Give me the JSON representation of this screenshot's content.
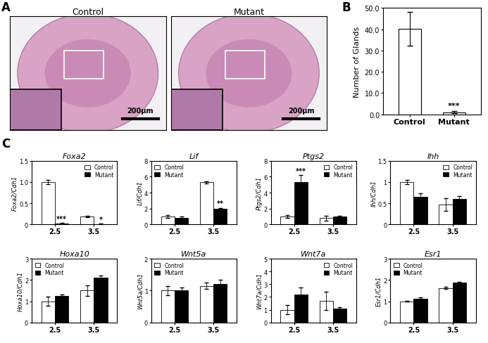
{
  "images": {
    "panel": "A",
    "items": [
      {
        "label": "Control",
        "scale_bar": "200µm"
      },
      {
        "label": "Mutant",
        "scale_bar": "200µm"
      }
    ]
  },
  "chart_data": [
    {
      "type": "bar",
      "panel": "B",
      "categories": [
        "Control",
        "Mutant"
      ],
      "values": [
        40.2,
        1.0
      ],
      "errors": [
        8.0,
        0.5
      ],
      "colors": [
        "#ffffff",
        "#ffffff"
      ],
      "y_label": "Number of Glands",
      "ylim": [
        0,
        50
      ],
      "yticks": [
        {
          "value": 0,
          "label": "0.0"
        },
        {
          "value": 10,
          "label": "10.0"
        },
        {
          "value": 20,
          "label": "20.0"
        },
        {
          "value": 30,
          "label": "30.0"
        },
        {
          "value": 40,
          "label": "40.0"
        },
        {
          "value": 50,
          "label": "50.0"
        }
      ],
      "annotations": [
        {
          "text": "***",
          "category": "Mutant"
        }
      ]
    },
    {
      "type": "bar",
      "panel": "C",
      "title": "Foxa2",
      "y_label": "Foxa2/Cdh1",
      "categories": [
        "2.5",
        "3.5"
      ],
      "series": [
        {
          "name": "Control",
          "color": "#ffffff",
          "values": [
            1.0,
            0.19
          ],
          "errors": [
            0.05,
            0.02
          ]
        },
        {
          "name": "Mutant",
          "color": "#000000",
          "values": [
            0.02,
            0.01
          ],
          "errors": [
            0.01,
            0.005
          ]
        }
      ],
      "ylim": [
        0,
        1.5
      ],
      "yticks": [
        0,
        0.5,
        {
          "value": 1,
          "label": "1.0"
        },
        1.5
      ],
      "legend": "upper right",
      "annotations": [
        {
          "text": "***",
          "category": "2.5",
          "series": "Mutant"
        },
        {
          "text": "*",
          "category": "3.5",
          "series": "Mutant"
        }
      ]
    },
    {
      "type": "bar",
      "title": "Lif",
      "y_label": "Lif/Cdh1",
      "categories": [
        "2.5",
        "3.5"
      ],
      "series": [
        {
          "name": "Control",
          "color": "#ffffff",
          "values": [
            1.0,
            5.3
          ],
          "errors": [
            0.2,
            0.15
          ]
        },
        {
          "name": "Mutant",
          "color": "#000000",
          "values": [
            0.8,
            2.0
          ],
          "errors": [
            0.2,
            0.1
          ]
        }
      ],
      "ylim": [
        0,
        8
      ],
      "yticks": [
        0,
        2,
        4,
        6,
        8
      ],
      "legend": "upper left",
      "annotations": [
        {
          "text": "**",
          "category": "3.5",
          "series": "Mutant"
        }
      ]
    },
    {
      "type": "bar",
      "title": "Ptgs2",
      "y_label": "Ptgs2/Cdh1",
      "categories": [
        "2.5",
        "3.5"
      ],
      "series": [
        {
          "name": "Control",
          "color": "#ffffff",
          "values": [
            1.0,
            0.8
          ],
          "errors": [
            0.15,
            0.3
          ]
        },
        {
          "name": "Mutant",
          "color": "#000000",
          "values": [
            5.3,
            1.0
          ],
          "errors": [
            0.9,
            0.1
          ]
        }
      ],
      "ylim": [
        0,
        8
      ],
      "yticks": [
        0,
        2,
        4,
        6,
        8
      ],
      "legend": "upper right",
      "annotations": [
        {
          "text": "***",
          "category": "2.5",
          "series": "Mutant"
        }
      ]
    },
    {
      "type": "bar",
      "title": "Ihh",
      "y_label": "Ihh/Cdh1",
      "categories": [
        "2.5",
        "3.5"
      ],
      "series": [
        {
          "name": "Control",
          "color": "#ffffff",
          "values": [
            1.0,
            0.47
          ],
          "errors": [
            0.05,
            0.15
          ]
        },
        {
          "name": "Mutant",
          "color": "#000000",
          "values": [
            0.65,
            0.6
          ],
          "errors": [
            0.08,
            0.06
          ]
        }
      ],
      "ylim": [
        0,
        1.5
      ],
      "yticks": [
        0,
        0.5,
        1,
        1.5
      ],
      "legend": "upper right"
    },
    {
      "type": "bar",
      "title": "Hoxa10",
      "y_label": "Hoxa10/Cdh1",
      "categories": [
        "2.5",
        "3.5"
      ],
      "series": [
        {
          "name": "Control",
          "color": "#ffffff",
          "values": [
            1.0,
            1.5
          ],
          "errors": [
            0.2,
            0.25
          ]
        },
        {
          "name": "Mutant",
          "color": "#000000",
          "values": [
            1.25,
            2.1
          ],
          "errors": [
            0.05,
            0.1
          ]
        }
      ],
      "ylim": [
        0,
        3
      ],
      "yticks": [
        0,
        1,
        2,
        3
      ],
      "legend": "upper left"
    },
    {
      "type": "bar",
      "title": "Wnt5a",
      "y_label": "Wnt5a/Cdh1",
      "categories": [
        "2.5",
        "3.5"
      ],
      "series": [
        {
          "name": "Control",
          "color": "#ffffff",
          "values": [
            1.0,
            1.15
          ],
          "errors": [
            0.15,
            0.1
          ]
        },
        {
          "name": "Mutant",
          "color": "#000000",
          "values": [
            1.0,
            1.2
          ],
          "errors": [
            0.1,
            0.15
          ]
        }
      ],
      "ylim": [
        0,
        2
      ],
      "yticks": [
        0,
        1,
        2
      ],
      "legend": "upper left"
    },
    {
      "type": "bar",
      "title": "Wnt7a",
      "y_label": "Wnt7a/Cdh1",
      "categories": [
        "2.5",
        "3.5"
      ],
      "series": [
        {
          "name": "Control",
          "color": "#ffffff",
          "values": [
            1.0,
            1.7
          ],
          "errors": [
            0.35,
            0.7
          ]
        },
        {
          "name": "Mutant",
          "color": "#000000",
          "values": [
            2.2,
            1.1
          ],
          "errors": [
            0.55,
            0.1
          ]
        }
      ],
      "ylim": [
        0,
        5
      ],
      "yticks": [
        0,
        1,
        2,
        3,
        4,
        5
      ],
      "legend": "upper right"
    },
    {
      "type": "bar",
      "title": "Esr1",
      "y_label": "Esr1/Cdh1",
      "categories": [
        "2.5",
        "3.5"
      ],
      "series": [
        {
          "name": "Control",
          "color": "#ffffff",
          "values": [
            1.0,
            1.62
          ],
          "errors": [
            0.03,
            0.05
          ]
        },
        {
          "name": "Mutant",
          "color": "#000000",
          "values": [
            1.12,
            1.88
          ],
          "errors": [
            0.05,
            0.03
          ]
        }
      ],
      "ylim": [
        0,
        3
      ],
      "yticks": [
        0,
        1,
        2,
        3
      ],
      "legend": "upper left"
    }
  ]
}
